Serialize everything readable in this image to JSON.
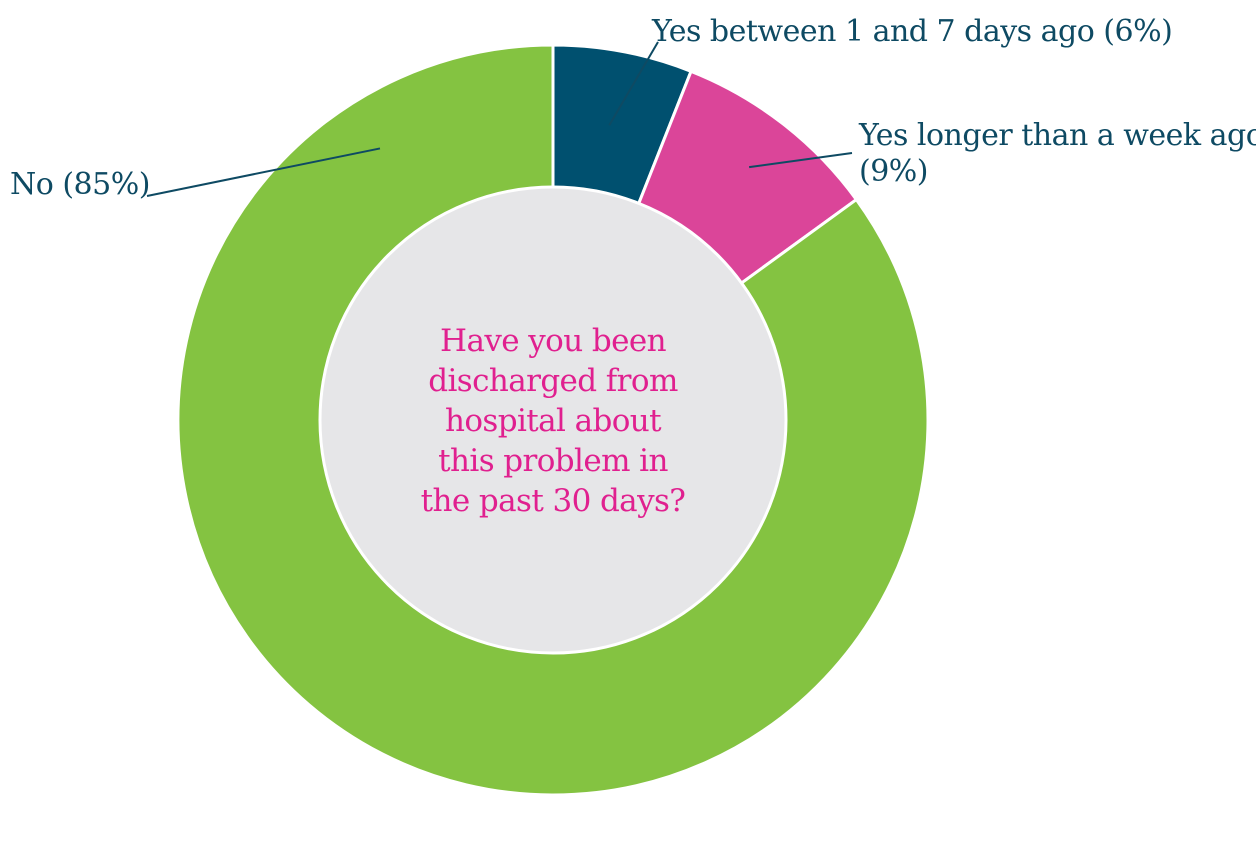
{
  "chart_data": {
    "type": "pie",
    "variant": "donut",
    "title": "Have you been discharged from hospital about this problem in the past 30 days?",
    "title_lines": [
      "Have you been",
      "discharged from",
      "hospital about",
      "this problem in",
      "the past 30 days?"
    ],
    "categories": [
      "Yes between 1 and 7 days ago",
      "Yes longer than a week ago",
      "No"
    ],
    "values": [
      6,
      9,
      85
    ],
    "unit": "%",
    "slices": [
      {
        "name": "Yes between 1 and 7 days ago",
        "value": 6,
        "color": "#00506F",
        "label_lines": [
          "Yes between 1 and 7 days ago (6%)"
        ]
      },
      {
        "name": "Yes longer than a week ago",
        "value": 9,
        "color": "#DB4599",
        "label_lines": [
          "Yes longer than a week ago",
          "(9%)"
        ]
      },
      {
        "name": "No",
        "value": 85,
        "color": "#84C341",
        "label_lines": [
          "No (85%)"
        ]
      }
    ],
    "center_fill": "#E6E6E8",
    "label_color": "#0E4A63",
    "title_color": "#E0208F",
    "legend": "none (direct labels with leader lines)"
  }
}
